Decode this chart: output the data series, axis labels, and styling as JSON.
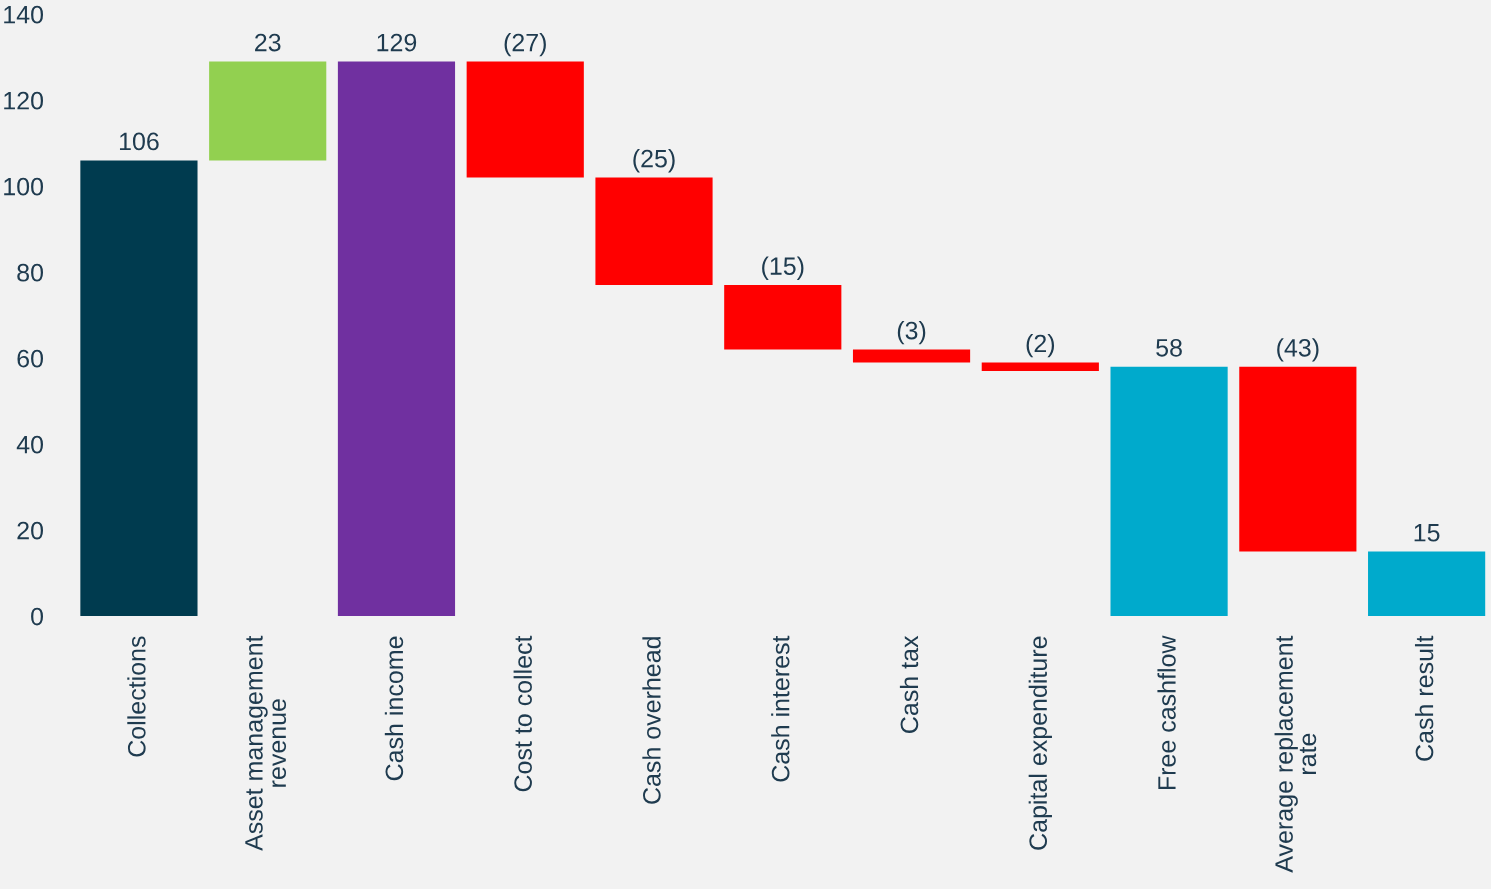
{
  "chart_data": {
    "type": "bar",
    "categories": [
      "Collections",
      "Asset management\nrevenue",
      "Cash income",
      "Cost to collect",
      "Cash overhead",
      "Cash interest",
      "Cash tax",
      "Capital expenditure",
      "Free cashflow",
      "Average replacement\nrate",
      "Cash result"
    ],
    "values": [
      106,
      23,
      129,
      -27,
      -25,
      -15,
      -3,
      -2,
      58,
      -43,
      15
    ],
    "base": [
      0,
      106,
      0,
      129,
      102,
      77,
      62,
      59,
      0,
      58,
      0
    ],
    "colors": [
      "#003b4f",
      "#92d050",
      "#7030a0",
      "#ff0000",
      "#ff0000",
      "#ff0000",
      "#ff0000",
      "#ff0000",
      "#00aacc",
      "#ff0000",
      "#00aacc"
    ],
    "value_labels": [
      "106",
      "23",
      "129",
      "(27)",
      "(25)",
      "(15)",
      "(3)",
      "(2)",
      "58",
      "(43)",
      "15"
    ],
    "ylim": [
      0,
      140
    ],
    "yticks": [
      0,
      20,
      40,
      60,
      80,
      100,
      120,
      140
    ],
    "grid": false,
    "legend": false
  }
}
